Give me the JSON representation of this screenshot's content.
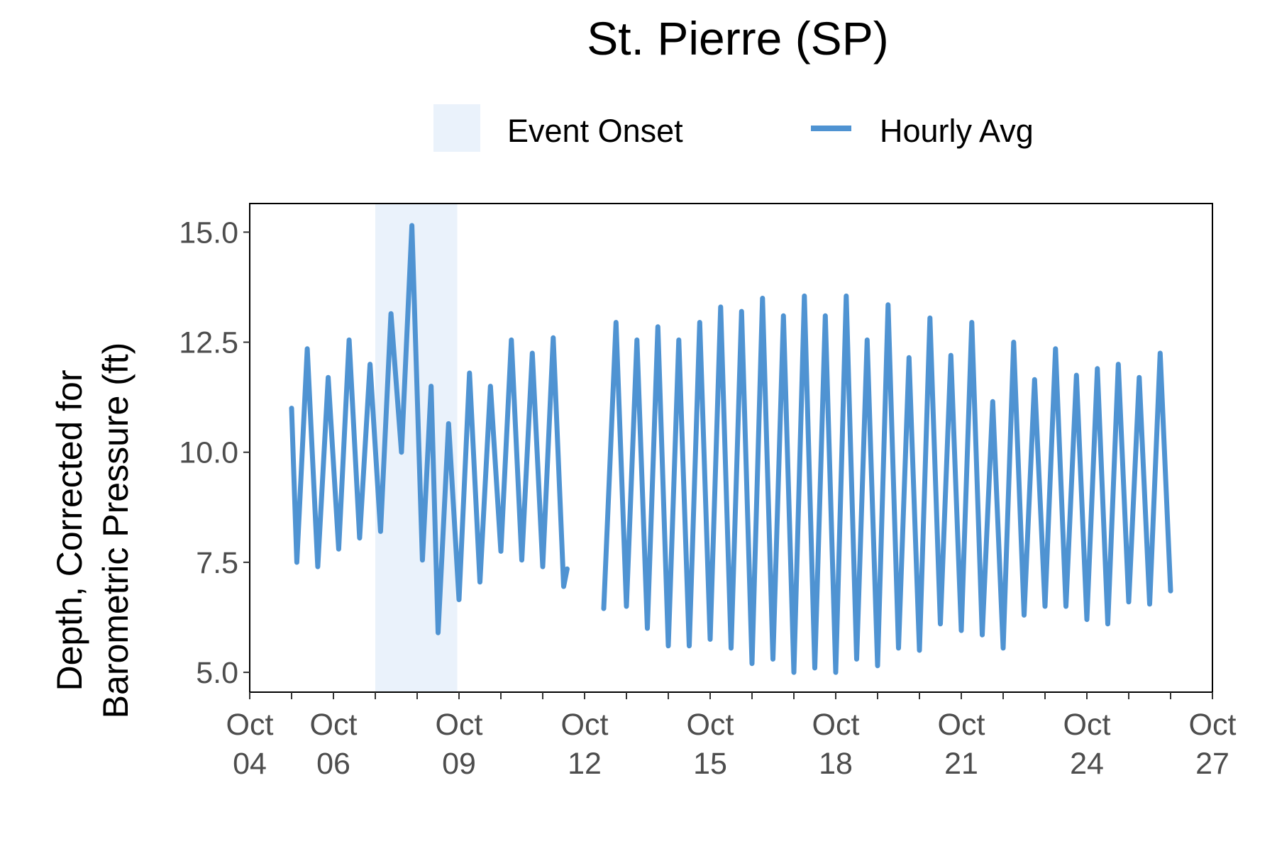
{
  "chart_data": {
    "type": "line",
    "title": "St. Pierre (SP)",
    "xlabel": "",
    "ylabel_lines": [
      "Depth, Corrected for",
      "Barometric Pressure (ft)"
    ],
    "ylim": [
      4.55,
      15.65
    ],
    "y_ticks": [
      "5.0",
      "7.5",
      "10.0",
      "12.5",
      "15.0"
    ],
    "x_range": [
      "2023-10-04",
      "2023-10-27"
    ],
    "x_ticks": [
      {
        "date": "2023-10-04",
        "line1": "Oct",
        "line2": "04"
      },
      {
        "date": "2023-10-06",
        "line1": "Oct",
        "line2": "06"
      },
      {
        "date": "2023-10-09",
        "line1": "Oct",
        "line2": "09"
      },
      {
        "date": "2023-10-12",
        "line1": "Oct",
        "line2": "12"
      },
      {
        "date": "2023-10-15",
        "line1": "Oct",
        "line2": "15"
      },
      {
        "date": "2023-10-18",
        "line1": "Oct",
        "line2": "18"
      },
      {
        "date": "2023-10-21",
        "line1": "Oct",
        "line2": "21"
      },
      {
        "date": "2023-10-24",
        "line1": "Oct",
        "line2": "24"
      },
      {
        "date": "2023-10-27",
        "line1": "Oct",
        "line2": "27"
      }
    ],
    "minor_tick_dates": [
      "2023-10-05",
      "2023-10-07",
      "2023-10-08",
      "2023-10-10",
      "2023-10-11",
      "2023-10-13",
      "2023-10-14",
      "2023-10-16",
      "2023-10-17",
      "2023-10-19",
      "2023-10-20",
      "2023-10-22",
      "2023-10-23",
      "2023-10-25",
      "2023-10-26"
    ],
    "legend": {
      "position": "top",
      "items": [
        {
          "label": "Event Onset",
          "kind": "fill",
          "color": "#eaf2fb"
        },
        {
          "label": "Hourly Avg",
          "kind": "line",
          "color": "#4f93d2"
        }
      ]
    },
    "shaded_region": {
      "label": "Event Onset",
      "from": "2023-10-07 00:00",
      "to": "2023-10-08 23:00",
      "color": "#eaf2fb"
    },
    "series": [
      {
        "name": "Hourly Avg",
        "color": "#4f93d2",
        "segments": [
          [
            [
              "2023-10-05 00:00",
              11.0
            ],
            [
              "2023-10-05 03:00",
              7.5
            ],
            [
              "2023-10-05 09:00",
              12.35
            ],
            [
              "2023-10-05 15:00",
              7.4
            ],
            [
              "2023-10-05 21:00",
              11.7
            ],
            [
              "2023-10-06 03:00",
              7.8
            ],
            [
              "2023-10-06 09:00",
              12.55
            ],
            [
              "2023-10-06 15:00",
              8.05
            ],
            [
              "2023-10-06 21:00",
              12.0
            ],
            [
              "2023-10-07 03:00",
              8.2
            ],
            [
              "2023-10-07 09:00",
              13.15
            ],
            [
              "2023-10-07 15:00",
              10.0
            ],
            [
              "2023-10-07 21:00",
              15.15
            ],
            [
              "2023-10-08 03:00",
              7.55
            ],
            [
              "2023-10-08 08:00",
              11.5
            ],
            [
              "2023-10-08 12:00",
              5.9
            ],
            [
              "2023-10-08 18:00",
              10.65
            ],
            [
              "2023-10-09 00:00",
              6.65
            ],
            [
              "2023-10-09 06:00",
              11.8
            ],
            [
              "2023-10-09 12:00",
              7.05
            ],
            [
              "2023-10-09 18:00",
              11.5
            ],
            [
              "2023-10-10 00:00",
              7.75
            ],
            [
              "2023-10-10 06:00",
              12.55
            ],
            [
              "2023-10-10 12:00",
              7.55
            ],
            [
              "2023-10-10 18:00",
              12.25
            ],
            [
              "2023-10-11 00:00",
              7.4
            ],
            [
              "2023-10-11 06:00",
              12.6
            ],
            [
              "2023-10-11 12:00",
              6.95
            ],
            [
              "2023-10-11 14:00",
              7.35
            ]
          ],
          [
            [
              "2023-10-12 11:00",
              6.45
            ],
            [
              "2023-10-12 18:00",
              12.95
            ],
            [
              "2023-10-13 00:00",
              6.5
            ],
            [
              "2023-10-13 06:00",
              12.55
            ],
            [
              "2023-10-13 12:00",
              6.0
            ],
            [
              "2023-10-13 18:00",
              12.85
            ],
            [
              "2023-10-14 00:00",
              5.6
            ],
            [
              "2023-10-14 06:00",
              12.55
            ],
            [
              "2023-10-14 12:00",
              5.6
            ],
            [
              "2023-10-14 18:00",
              12.95
            ],
            [
              "2023-10-15 00:00",
              5.75
            ],
            [
              "2023-10-15 06:00",
              13.3
            ],
            [
              "2023-10-15 12:00",
              5.55
            ],
            [
              "2023-10-15 18:00",
              13.2
            ],
            [
              "2023-10-16 00:00",
              5.2
            ],
            [
              "2023-10-16 06:00",
              13.5
            ],
            [
              "2023-10-16 12:00",
              5.3
            ],
            [
              "2023-10-16 18:00",
              13.1
            ],
            [
              "2023-10-17 00:00",
              5.0
            ],
            [
              "2023-10-17 06:00",
              13.55
            ],
            [
              "2023-10-17 12:00",
              5.1
            ],
            [
              "2023-10-17 18:00",
              13.1
            ],
            [
              "2023-10-18 00:00",
              5.0
            ],
            [
              "2023-10-18 06:00",
              13.55
            ],
            [
              "2023-10-18 12:00",
              5.3
            ],
            [
              "2023-10-18 18:00",
              12.55
            ],
            [
              "2023-10-19 00:00",
              5.15
            ],
            [
              "2023-10-19 06:00",
              13.35
            ],
            [
              "2023-10-19 12:00",
              5.55
            ],
            [
              "2023-10-19 18:00",
              12.15
            ],
            [
              "2023-10-20 00:00",
              5.5
            ],
            [
              "2023-10-20 06:00",
              13.05
            ],
            [
              "2023-10-20 12:00",
              6.1
            ],
            [
              "2023-10-20 18:00",
              12.2
            ],
            [
              "2023-10-21 00:00",
              5.95
            ],
            [
              "2023-10-21 06:00",
              12.95
            ],
            [
              "2023-10-21 12:00",
              5.85
            ],
            [
              "2023-10-21 18:00",
              11.15
            ],
            [
              "2023-10-22 00:00",
              5.55
            ],
            [
              "2023-10-22 06:00",
              12.5
            ],
            [
              "2023-10-22 12:00",
              6.3
            ],
            [
              "2023-10-22 18:00",
              11.65
            ],
            [
              "2023-10-23 00:00",
              6.5
            ],
            [
              "2023-10-23 06:00",
              12.35
            ],
            [
              "2023-10-23 12:00",
              6.5
            ],
            [
              "2023-10-23 18:00",
              11.75
            ],
            [
              "2023-10-24 00:00",
              6.2
            ],
            [
              "2023-10-24 06:00",
              11.9
            ],
            [
              "2023-10-24 12:00",
              6.1
            ],
            [
              "2023-10-24 18:00",
              12.0
            ],
            [
              "2023-10-25 00:00",
              6.6
            ],
            [
              "2023-10-25 06:00",
              11.7
            ],
            [
              "2023-10-25 12:00",
              6.55
            ],
            [
              "2023-10-25 18:00",
              12.25
            ],
            [
              "2023-10-26 00:00",
              6.85
            ]
          ]
        ]
      }
    ]
  }
}
